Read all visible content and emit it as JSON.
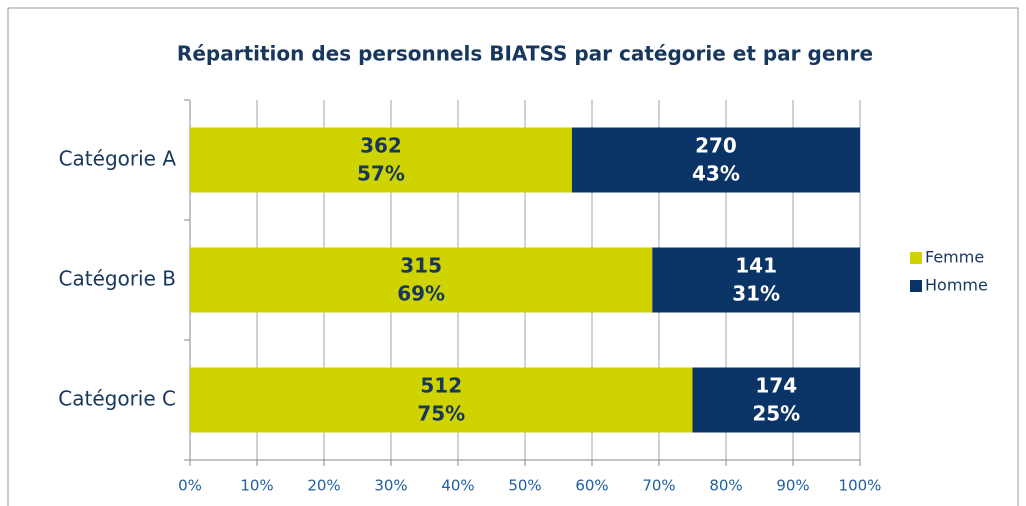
{
  "chart_data": {
    "type": "stacked_barh",
    "title": "Répartition des personnels BIATSS par catégorie et par genre",
    "categories": [
      "Catégorie A",
      "Catégorie B",
      "Catégorie C"
    ],
    "series": [
      {
        "name": "Femme",
        "color": "#cfd400",
        "label_color": "#17375e",
        "values": [
          57,
          69,
          75
        ],
        "value_labels": [
          "57%",
          "69%",
          "75%"
        ],
        "counts": [
          362,
          315,
          512
        ]
      },
      {
        "name": "Homme",
        "color": "#0b3466",
        "label_color": "#ffffff",
        "values": [
          43,
          31,
          25
        ],
        "value_labels": [
          "43%",
          "31%",
          "25%"
        ],
        "counts": [
          270,
          141,
          174
        ]
      }
    ],
    "xlim": [
      0,
      100
    ],
    "xticks": [
      {
        "value": 0,
        "label": "0%"
      },
      {
        "value": 10,
        "label": "10%"
      },
      {
        "value": 20,
        "label": "20%"
      },
      {
        "value": 30,
        "label": "30%"
      },
      {
        "value": 40,
        "label": "40%"
      },
      {
        "value": 50,
        "label": "50%"
      },
      {
        "value": 60,
        "label": "60%"
      },
      {
        "value": 70,
        "label": "70%"
      },
      {
        "value": 80,
        "label": "80%"
      },
      {
        "value": 90,
        "label": "90%"
      },
      {
        "value": 100,
        "label": "100%"
      }
    ],
    "grid": true,
    "legend": "right"
  }
}
